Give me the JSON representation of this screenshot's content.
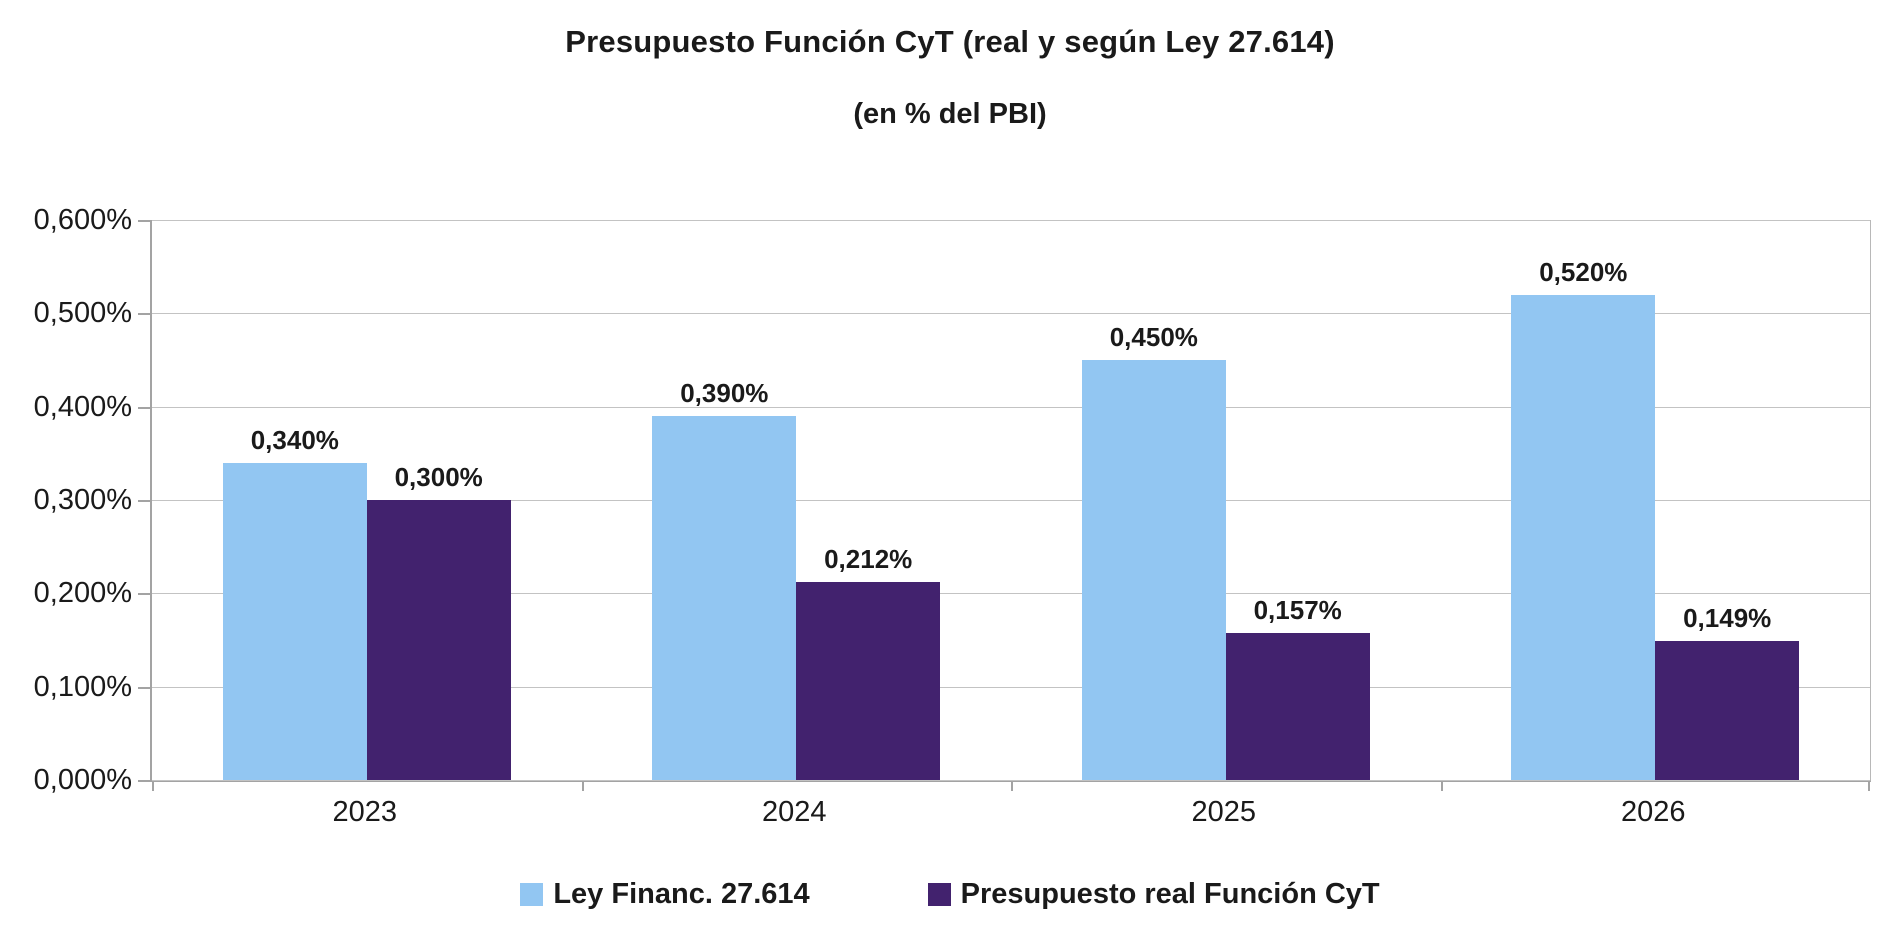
{
  "chart_data": {
    "type": "bar",
    "title": "Presupuesto Función CyT (real y según Ley 27.614)",
    "subtitle": "(en % del PBI)",
    "categories": [
      "2023",
      "2024",
      "2025",
      "2026"
    ],
    "series": [
      {
        "name": "Ley Financ. 27.614",
        "color": "#92c6f2",
        "values": [
          0.34,
          0.39,
          0.45,
          0.52
        ],
        "labels": [
          "0,340%",
          "0,390%",
          "0,450%",
          "0,520%"
        ]
      },
      {
        "name": "Presupuesto real Función CyT",
        "color": "#42226e",
        "values": [
          0.3,
          0.212,
          0.157,
          0.149
        ],
        "labels": [
          "0,300%",
          "0,212%",
          "0,157%",
          "0,149%"
        ]
      }
    ],
    "xlabel": "",
    "ylabel": "",
    "ylim": [
      0,
      0.6
    ],
    "yticks": [
      0.0,
      0.1,
      0.2,
      0.3,
      0.4,
      0.5,
      0.6
    ],
    "ytick_labels": [
      "0,000%",
      "0,100%",
      "0,200%",
      "0,300%",
      "0,400%",
      "0,500%",
      "0,600%"
    ],
    "grid": true,
    "legend_position": "bottom"
  },
  "colors": {
    "background": "#ffffff",
    "gridline": "#c3c3c3",
    "axis": "#a3a3a3",
    "text": "#1a1a1a"
  }
}
